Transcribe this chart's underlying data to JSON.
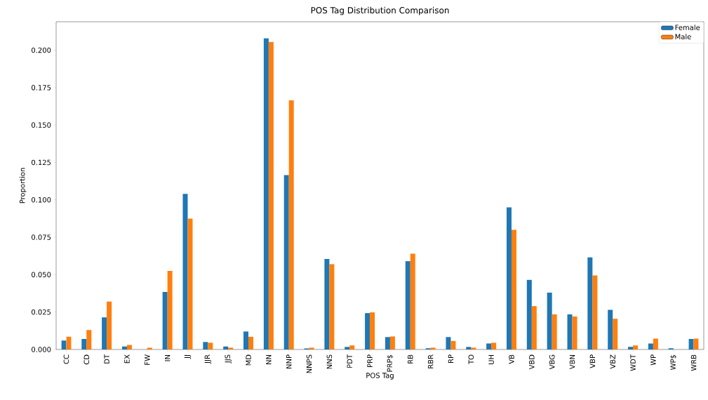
{
  "chart_data": {
    "type": "bar",
    "title": "POS Tag Distribution Comparison",
    "xlabel": "POS Tag",
    "ylabel": "Proportion",
    "categories": [
      "CC",
      "CD",
      "DT",
      "EX",
      "FW",
      "IN",
      "JJ",
      "JJR",
      "JJS",
      "MD",
      "NN",
      "NNP",
      "NNPS",
      "NNS",
      "PDT",
      "PRP",
      "PRP$",
      "RB",
      "RBR",
      "RP",
      "TO",
      "UH",
      "VB",
      "VBD",
      "VBG",
      "VBN",
      "VBP",
      "VBZ",
      "WDT",
      "WP",
      "WP$",
      "WRB"
    ],
    "series": [
      {
        "name": "Female",
        "color": "#1f77b4",
        "values": [
          0.006,
          0.007,
          0.0215,
          0.002,
          0,
          0.0385,
          0.104,
          0.005,
          0.002,
          0.012,
          0.208,
          0.1165,
          0.0007,
          0.0605,
          0.0017,
          0.0243,
          0.0083,
          0.059,
          0.0008,
          0.0083,
          0.0017,
          0.004,
          0.095,
          0.0465,
          0.038,
          0.0235,
          0.0615,
          0.0265,
          0.0017,
          0.004,
          0.0008,
          0.007
        ]
      },
      {
        "name": "Male",
        "color": "#ff7f0e",
        "values": [
          0.0085,
          0.013,
          0.032,
          0.003,
          0.0012,
          0.0525,
          0.0875,
          0.0045,
          0.0012,
          0.0085,
          0.2055,
          0.1665,
          0.0012,
          0.057,
          0.0027,
          0.0248,
          0.0087,
          0.064,
          0.0012,
          0.0057,
          0.0012,
          0.0045,
          0.08,
          0.029,
          0.0235,
          0.022,
          0.0495,
          0.0205,
          0.0027,
          0.0073,
          0,
          0.0073
        ]
      }
    ],
    "ylim": [
      0,
      0.219
    ],
    "yticks": [
      {
        "value": 0,
        "label": "0.000"
      },
      0.025,
      {
        "value": 0.05,
        "label": "0.050"
      },
      0.075,
      {
        "value": 0.1,
        "label": "0.100"
      },
      0.125,
      {
        "value": 0.15,
        "label": "0.150"
      },
      0.175,
      {
        "value": 0.2,
        "label": "0.200"
      }
    ],
    "legend": "top right"
  }
}
